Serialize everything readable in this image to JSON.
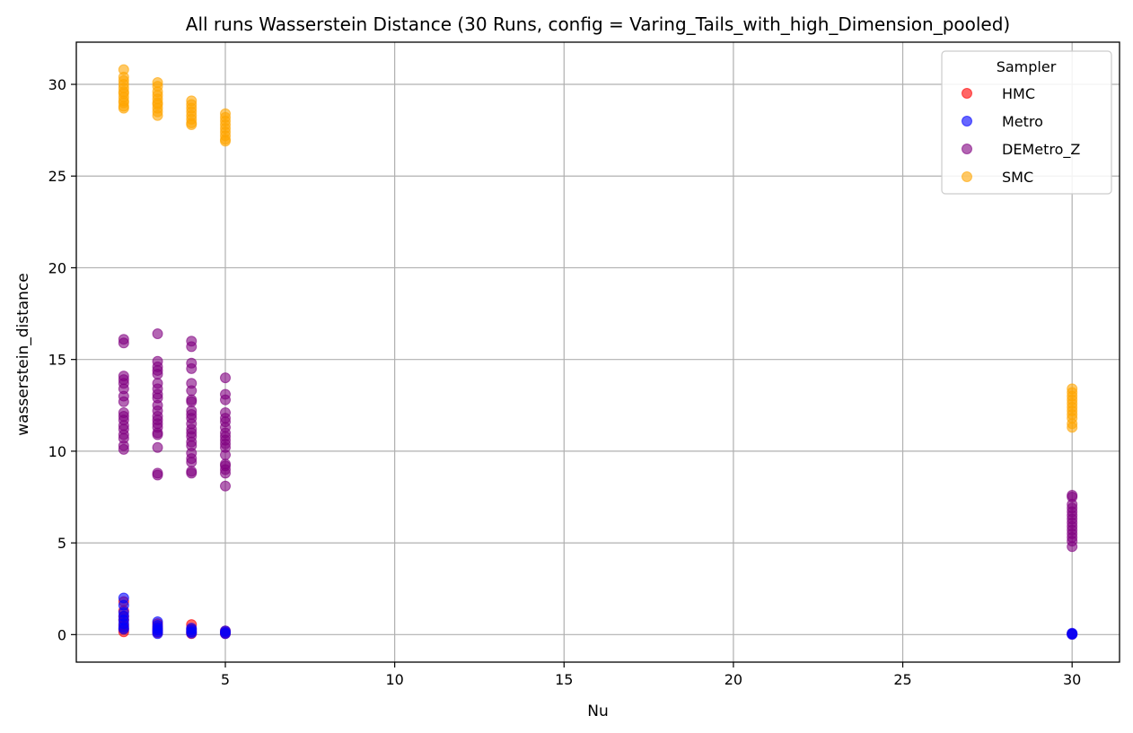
{
  "chart_data": {
    "type": "scatter",
    "title": "All runs Wasserstein Distance (30 Runs, config = Varing_Tails_with_high_Dimension_pooled)",
    "xlabel": "Nu",
    "ylabel": "wasserstein_distance",
    "xlim": [
      0.6,
      31.4
    ],
    "ylim": [
      -1.5,
      32.3
    ],
    "xticks": [
      5,
      10,
      15,
      20,
      25,
      30
    ],
    "yticks": [
      0,
      5,
      10,
      15,
      20,
      25,
      30
    ],
    "grid": true,
    "legend": {
      "title": "Sampler",
      "placement": "top-right"
    },
    "series": [
      {
        "name": "HMC",
        "color": "#ff0000",
        "points": [
          [
            2,
            1.8
          ],
          [
            2,
            1.3
          ],
          [
            2,
            1.0
          ],
          [
            2,
            0.8
          ],
          [
            2,
            0.5
          ],
          [
            2,
            0.3
          ],
          [
            2,
            0.15
          ],
          [
            3,
            0.6
          ],
          [
            3,
            0.4
          ],
          [
            3,
            0.25
          ],
          [
            3,
            0.1
          ],
          [
            4,
            0.55
          ],
          [
            4,
            0.3
          ],
          [
            4,
            0.15
          ],
          [
            4,
            0.05
          ],
          [
            5,
            0.2
          ],
          [
            5,
            0.1
          ],
          [
            5,
            0.05
          ],
          [
            30,
            0.05
          ],
          [
            30,
            0.02
          ]
        ]
      },
      {
        "name": "Metro",
        "color": "#0000ff",
        "points": [
          [
            2,
            2.0
          ],
          [
            2,
            1.6
          ],
          [
            2,
            1.2
          ],
          [
            2,
            1.0
          ],
          [
            2,
            0.8
          ],
          [
            2,
            0.6
          ],
          [
            2,
            0.4
          ],
          [
            2,
            0.3
          ],
          [
            3,
            0.7
          ],
          [
            3,
            0.5
          ],
          [
            3,
            0.35
          ],
          [
            3,
            0.25
          ],
          [
            3,
            0.15
          ],
          [
            3,
            0.05
          ],
          [
            4,
            0.35
          ],
          [
            4,
            0.25
          ],
          [
            4,
            0.15
          ],
          [
            4,
            0.08
          ],
          [
            5,
            0.2
          ],
          [
            5,
            0.12
          ],
          [
            5,
            0.05
          ],
          [
            30,
            0.08
          ],
          [
            30,
            0.04
          ],
          [
            30,
            0.01
          ]
        ]
      },
      {
        "name": "DEMetro_Z",
        "color": "#800080",
        "points": [
          [
            2,
            16.1
          ],
          [
            2,
            15.9
          ],
          [
            2,
            14.1
          ],
          [
            2,
            13.9
          ],
          [
            2,
            13.7
          ],
          [
            2,
            13.4
          ],
          [
            2,
            13.0
          ],
          [
            2,
            12.7
          ],
          [
            2,
            12.1
          ],
          [
            2,
            11.9
          ],
          [
            2,
            11.7
          ],
          [
            2,
            11.4
          ],
          [
            2,
            11.2
          ],
          [
            2,
            10.9
          ],
          [
            2,
            10.7
          ],
          [
            2,
            10.3
          ],
          [
            2,
            10.1
          ],
          [
            3,
            16.4
          ],
          [
            3,
            14.9
          ],
          [
            3,
            14.6
          ],
          [
            3,
            14.4
          ],
          [
            3,
            14.2
          ],
          [
            3,
            13.7
          ],
          [
            3,
            13.4
          ],
          [
            3,
            13.1
          ],
          [
            3,
            12.9
          ],
          [
            3,
            12.5
          ],
          [
            3,
            12.2
          ],
          [
            3,
            11.9
          ],
          [
            3,
            11.7
          ],
          [
            3,
            11.5
          ],
          [
            3,
            11.3
          ],
          [
            3,
            11.0
          ],
          [
            3,
            10.9
          ],
          [
            3,
            10.2
          ],
          [
            3,
            8.8
          ],
          [
            3,
            8.7
          ],
          [
            4,
            16.0
          ],
          [
            4,
            15.7
          ],
          [
            4,
            14.8
          ],
          [
            4,
            14.5
          ],
          [
            4,
            13.7
          ],
          [
            4,
            13.3
          ],
          [
            4,
            12.8
          ],
          [
            4,
            12.7
          ],
          [
            4,
            12.2
          ],
          [
            4,
            12.0
          ],
          [
            4,
            11.8
          ],
          [
            4,
            11.5
          ],
          [
            4,
            11.2
          ],
          [
            4,
            11.0
          ],
          [
            4,
            10.8
          ],
          [
            4,
            10.5
          ],
          [
            4,
            10.3
          ],
          [
            4,
            9.9
          ],
          [
            4,
            9.6
          ],
          [
            4,
            9.4
          ],
          [
            4,
            8.9
          ],
          [
            4,
            8.8
          ],
          [
            5,
            14.0
          ],
          [
            5,
            13.1
          ],
          [
            5,
            12.8
          ],
          [
            5,
            12.1
          ],
          [
            5,
            11.8
          ],
          [
            5,
            11.6
          ],
          [
            5,
            11.3
          ],
          [
            5,
            11.0
          ],
          [
            5,
            10.8
          ],
          [
            5,
            10.6
          ],
          [
            5,
            10.4
          ],
          [
            5,
            10.2
          ],
          [
            5,
            9.8
          ],
          [
            5,
            9.3
          ],
          [
            5,
            9.2
          ],
          [
            5,
            9.0
          ],
          [
            5,
            8.8
          ],
          [
            5,
            8.1
          ],
          [
            30,
            7.6
          ],
          [
            30,
            7.5
          ],
          [
            30,
            7.1
          ],
          [
            30,
            6.9
          ],
          [
            30,
            6.7
          ],
          [
            30,
            6.5
          ],
          [
            30,
            6.3
          ],
          [
            30,
            6.1
          ],
          [
            30,
            5.9
          ],
          [
            30,
            5.7
          ],
          [
            30,
            5.5
          ],
          [
            30,
            5.3
          ],
          [
            30,
            5.1
          ],
          [
            30,
            4.8
          ]
        ]
      },
      {
        "name": "SMC",
        "color": "#ffa500",
        "points": [
          [
            2,
            30.8
          ],
          [
            2,
            30.4
          ],
          [
            2,
            30.2
          ],
          [
            2,
            30.0
          ],
          [
            2,
            29.8
          ],
          [
            2,
            29.6
          ],
          [
            2,
            29.5
          ],
          [
            2,
            29.3
          ],
          [
            2,
            29.1
          ],
          [
            2,
            29.0
          ],
          [
            2,
            28.8
          ],
          [
            2,
            28.7
          ],
          [
            3,
            30.1
          ],
          [
            3,
            29.9
          ],
          [
            3,
            29.6
          ],
          [
            3,
            29.4
          ],
          [
            3,
            29.2
          ],
          [
            3,
            29.0
          ],
          [
            3,
            28.9
          ],
          [
            3,
            28.7
          ],
          [
            3,
            28.5
          ],
          [
            3,
            28.3
          ],
          [
            4,
            29.1
          ],
          [
            4,
            28.9
          ],
          [
            4,
            28.7
          ],
          [
            4,
            28.5
          ],
          [
            4,
            28.3
          ],
          [
            4,
            28.1
          ],
          [
            4,
            27.9
          ],
          [
            4,
            27.8
          ],
          [
            5,
            28.4
          ],
          [
            5,
            28.2
          ],
          [
            5,
            28.0
          ],
          [
            5,
            27.8
          ],
          [
            5,
            27.6
          ],
          [
            5,
            27.4
          ],
          [
            5,
            27.2
          ],
          [
            5,
            27.0
          ],
          [
            5,
            26.9
          ],
          [
            30,
            13.4
          ],
          [
            30,
            13.2
          ],
          [
            30,
            13.0
          ],
          [
            30,
            12.8
          ],
          [
            30,
            12.6
          ],
          [
            30,
            12.4
          ],
          [
            30,
            12.2
          ],
          [
            30,
            12.0
          ],
          [
            30,
            11.8
          ],
          [
            30,
            11.5
          ],
          [
            30,
            11.3
          ]
        ]
      }
    ]
  }
}
